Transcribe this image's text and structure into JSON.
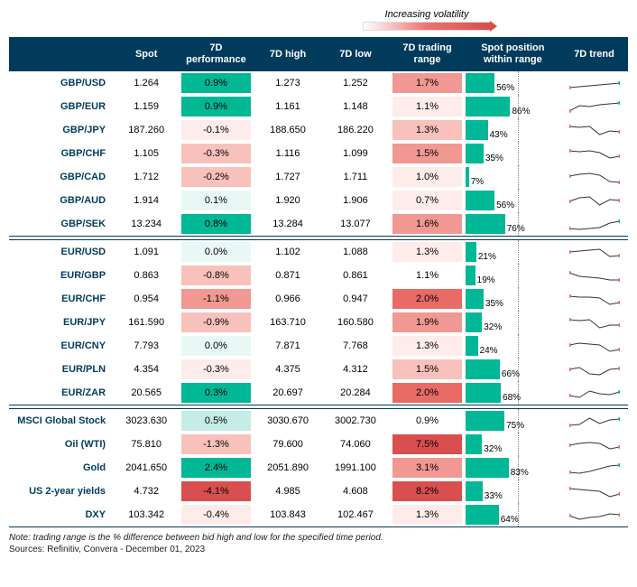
{
  "legend": {
    "label": "Increasing volatility"
  },
  "columns": [
    "",
    "Spot",
    "7D performance",
    "7D high",
    "7D low",
    "7D trading range",
    "Spot position within range",
    "7D trend"
  ],
  "col_widths": [
    "100",
    "60",
    "72",
    "64",
    "64",
    "72",
    "90",
    "64"
  ],
  "colors": {
    "header_bg": "#003b5c",
    "pos_strong": "#00b796",
    "pos_light": "#c4ede5",
    "pos_vlight": "#e9f8f5",
    "neg_vlight": "#fdecea",
    "neg_light": "#f8c1bb",
    "neg_med": "#f19892",
    "neg_strong": "#e86b65",
    "neg_vstrong": "#d94e4e",
    "spark_line": "#333",
    "spark_up": "#00b796",
    "spark_down": "#e86b65"
  },
  "groups": [
    {
      "rows": [
        {
          "name": "GBP/USD",
          "spot": "1.264",
          "perf": "0.9%",
          "perf_col": "pos_strong",
          "high": "1.273",
          "low": "1.252",
          "range": "1.7%",
          "range_col": "neg_med",
          "pos": 56,
          "trend": [
            14,
            13,
            12,
            11,
            10,
            9
          ],
          "trend_end": "up"
        },
        {
          "name": "GBP/EUR",
          "spot": "1.159",
          "perf": "0.9%",
          "perf_col": "pos_strong",
          "high": "1.161",
          "low": "1.148",
          "range": "1.1%",
          "range_col": "neg_vlight",
          "pos": 86,
          "trend": [
            14,
            8,
            9,
            7,
            6,
            5
          ],
          "trend_end": "up"
        },
        {
          "name": "GBP/JPY",
          "spot": "187.260",
          "perf": "-0.1%",
          "perf_col": "neg_vlight",
          "high": "188.650",
          "low": "186.220",
          "range": "1.3%",
          "range_col": "neg_light",
          "pos": 43,
          "trend": [
            5,
            6,
            5,
            14,
            10,
            11
          ],
          "trend_end": "down"
        },
        {
          "name": "GBP/CHF",
          "spot": "1.105",
          "perf": "-0.3%",
          "perf_col": "neg_light",
          "high": "1.116",
          "low": "1.099",
          "range": "1.5%",
          "range_col": "neg_med",
          "pos": 35,
          "trend": [
            6,
            7,
            6,
            8,
            14,
            12
          ],
          "trend_end": "down"
        },
        {
          "name": "GBP/CAD",
          "spot": "1.712",
          "perf": "-0.2%",
          "perf_col": "neg_light",
          "high": "1.727",
          "low": "1.711",
          "range": "1.0%",
          "range_col": "neg_vlight",
          "pos": 7,
          "trend": [
            8,
            6,
            5,
            7,
            14,
            15
          ],
          "trend_end": "down"
        },
        {
          "name": "GBP/AUD",
          "spot": "1.914",
          "perf": "0.1%",
          "perf_col": "pos_vlight",
          "high": "1.920",
          "low": "1.906",
          "range": "0.7%",
          "range_col": "neg_vlight",
          "pos": 56,
          "trend": [
            10,
            6,
            5,
            14,
            8,
            9
          ],
          "trend_end": "down"
        },
        {
          "name": "GBP/SEK",
          "spot": "13.234",
          "perf": "0.8%",
          "perf_col": "pos_strong",
          "high": "13.284",
          "low": "13.077",
          "range": "1.6%",
          "range_col": "neg_med",
          "pos": 76,
          "trend": [
            14,
            15,
            14,
            13,
            8,
            6
          ],
          "trend_end": "up"
        }
      ]
    },
    {
      "rows": [
        {
          "name": "EUR/USD",
          "spot": "1.091",
          "perf": "0.0%",
          "perf_col": "pos_vlight",
          "high": "1.102",
          "low": "1.088",
          "range": "1.3%",
          "range_col": "neg_vlight",
          "pos": 21,
          "trend": [
            9,
            8,
            7,
            6,
            14,
            13
          ],
          "trend_end": "down"
        },
        {
          "name": "EUR/GBP",
          "spot": "0.863",
          "perf": "-0.8%",
          "perf_col": "neg_light",
          "high": "0.871",
          "low": "0.861",
          "range": "1.1%",
          "range_col": "white",
          "pos": 19,
          "trend": [
            6,
            10,
            11,
            12,
            14,
            14
          ],
          "trend_end": "down"
        },
        {
          "name": "EUR/CHF",
          "spot": "0.954",
          "perf": "-1.1%",
          "perf_col": "neg_med",
          "high": "0.966",
          "low": "0.947",
          "range": "2.0%",
          "range_col": "neg_strong",
          "pos": 35,
          "trend": [
            6,
            7,
            7,
            8,
            15,
            13
          ],
          "trend_end": "down"
        },
        {
          "name": "EUR/JPY",
          "spot": "161.590",
          "perf": "-0.9%",
          "perf_col": "neg_light",
          "high": "163.710",
          "low": "160.580",
          "range": "1.9%",
          "range_col": "neg_med",
          "pos": 32,
          "trend": [
            6,
            7,
            6,
            15,
            12,
            12
          ],
          "trend_end": "down"
        },
        {
          "name": "EUR/CNY",
          "spot": "7.793",
          "perf": "0.0%",
          "perf_col": "pos_vlight",
          "high": "7.871",
          "low": "7.768",
          "range": "1.3%",
          "range_col": "neg_vlight",
          "pos": 24,
          "trend": [
            8,
            6,
            7,
            8,
            15,
            13
          ],
          "trend_end": "down"
        },
        {
          "name": "EUR/PLN",
          "spot": "4.354",
          "perf": "-0.3%",
          "perf_col": "neg_vlight",
          "high": "4.375",
          "low": "4.312",
          "range": "1.5%",
          "range_col": "neg_light",
          "pos": 66,
          "trend": [
            9,
            7,
            14,
            15,
            9,
            8
          ],
          "trend_end": "down"
        },
        {
          "name": "EUR/ZAR",
          "spot": "20.565",
          "perf": "0.3%",
          "perf_col": "pos_strong",
          "high": "20.697",
          "low": "20.284",
          "range": "2.0%",
          "range_col": "neg_strong",
          "pos": 68,
          "trend": [
            12,
            14,
            7,
            10,
            11,
            8
          ],
          "trend_end": "up"
        }
      ]
    },
    {
      "rows": [
        {
          "name": "MSCI Global Stock",
          "spot": "3023.630",
          "perf": "0.5%",
          "perf_col": "pos_light",
          "high": "3030.670",
          "low": "3002.730",
          "range": "0.9%",
          "range_col": "white",
          "pos": 75,
          "trend": [
            14,
            13,
            6,
            12,
            8,
            7
          ],
          "trend_end": "up"
        },
        {
          "name": "Oil (WTI)",
          "spot": "75.810",
          "perf": "-1.3%",
          "perf_col": "neg_light",
          "high": "79.600",
          "low": "74.060",
          "range": "7.5%",
          "range_col": "neg_vstrong",
          "pos": 32,
          "trend": [
            10,
            8,
            7,
            8,
            14,
            12
          ],
          "trend_end": "down"
        },
        {
          "name": "Gold",
          "spot": "2041.650",
          "perf": "2.4%",
          "perf_col": "pos_strong",
          "high": "2051.890",
          "low": "1991.100",
          "range": "3.1%",
          "range_col": "neg_med",
          "pos": 83,
          "trend": [
            14,
            15,
            13,
            10,
            7,
            6
          ],
          "trend_end": "up"
        },
        {
          "name": "US 2-year yields",
          "spot": "4.732",
          "perf": "-4.1%",
          "perf_col": "neg_vstrong",
          "high": "4.985",
          "low": "4.608",
          "range": "8.2%",
          "range_col": "neg_vstrong",
          "pos": 33,
          "trend": [
            6,
            7,
            8,
            9,
            15,
            12
          ],
          "trend_end": "down"
        },
        {
          "name": "DXY",
          "spot": "103.342",
          "perf": "-0.4%",
          "perf_col": "neg_vlight",
          "high": "103.843",
          "low": "102.467",
          "range": "1.3%",
          "range_col": "neg_vlight",
          "pos": 64,
          "trend": [
            10,
            14,
            12,
            11,
            8,
            9
          ],
          "trend_end": "down"
        }
      ]
    }
  ],
  "footnote": "Note: trading range is the % difference between bid high and low for the specified time period.",
  "source": "Sources: Refinitiv, Convera - December 01, 2023"
}
